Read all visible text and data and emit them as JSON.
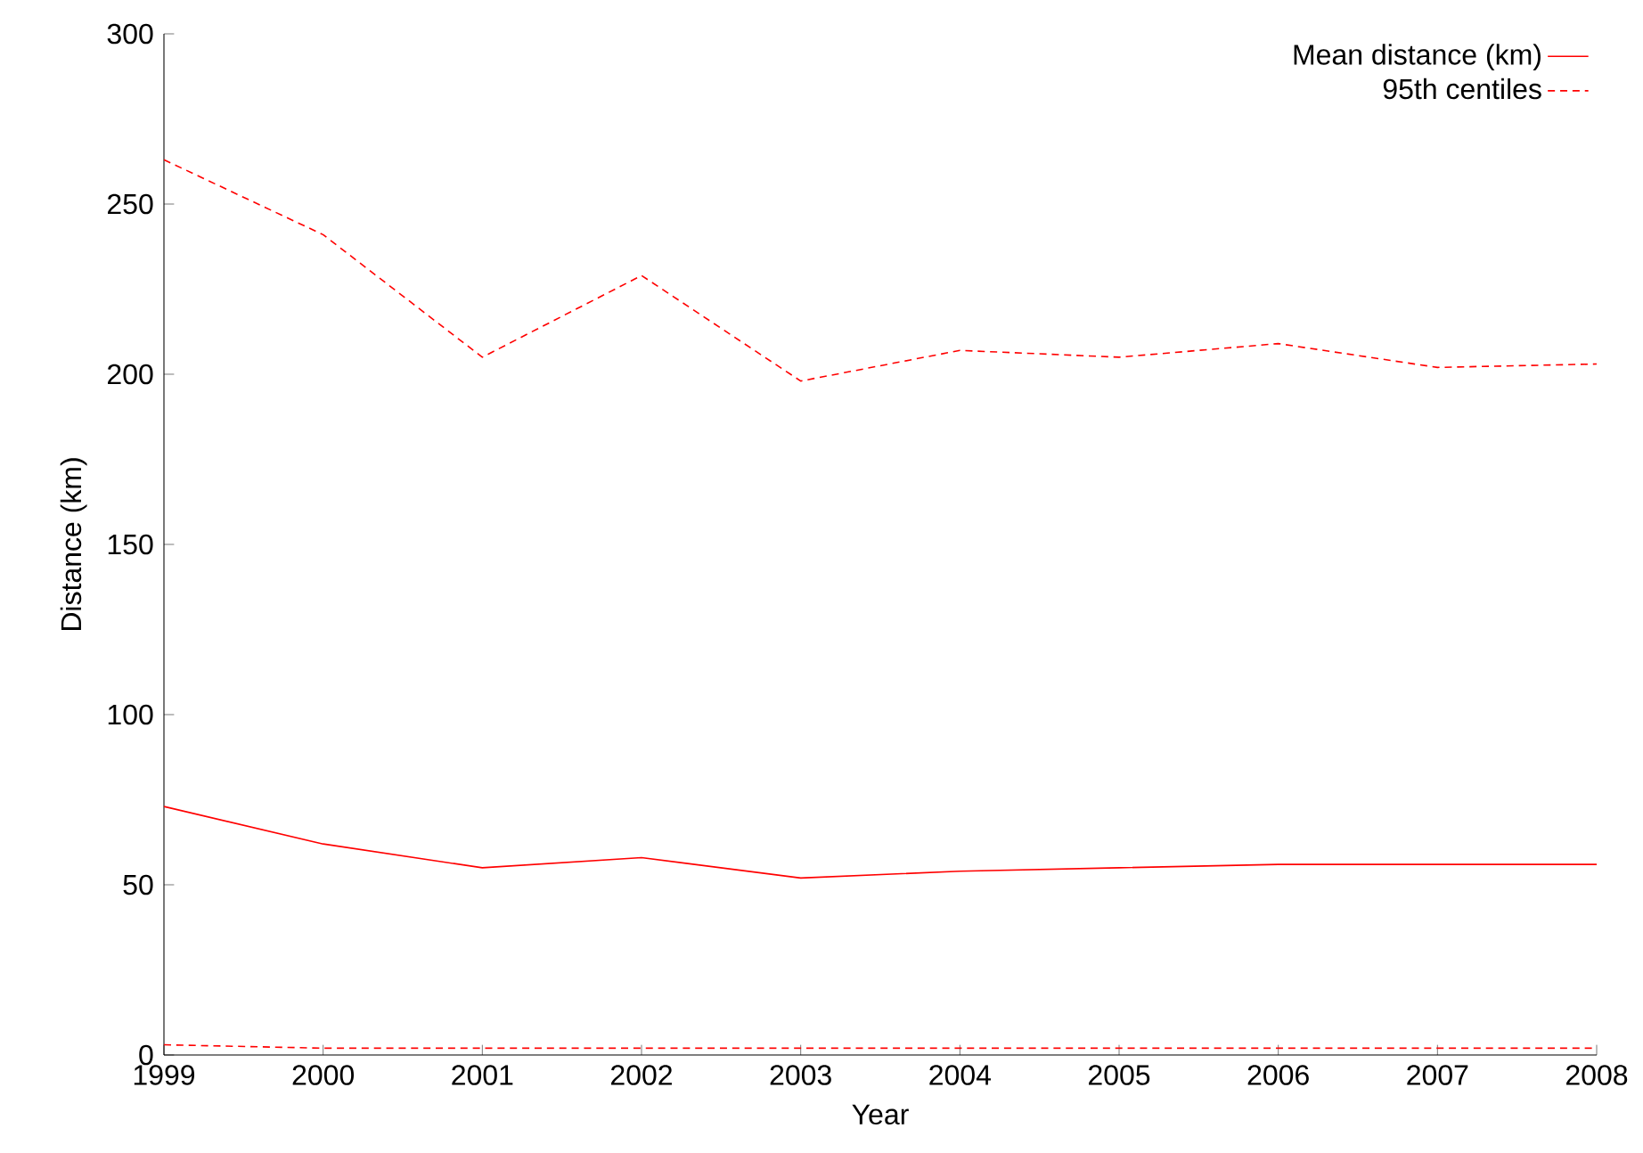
{
  "chart_data": {
    "type": "line",
    "xlabel": "Year",
    "ylabel": "Distance (km)",
    "x": [
      1999,
      2000,
      2001,
      2002,
      2003,
      2004,
      2005,
      2006,
      2007,
      2008
    ],
    "xlim": [
      1999,
      2008
    ],
    "xticks": [
      1999,
      2000,
      2001,
      2002,
      2003,
      2004,
      2005,
      2006,
      2007,
      2008
    ],
    "ylim": [
      0,
      300
    ],
    "yticks": [
      0,
      50,
      100,
      150,
      200,
      250,
      300
    ],
    "grid": false,
    "legend": "top right",
    "marker": "none",
    "series": [
      {
        "name": "Mean distance (km)",
        "color": "#ff0000",
        "line_style": "solid",
        "values": [
          73,
          62,
          55,
          58,
          52,
          54,
          55,
          56,
          56,
          56
        ]
      },
      {
        "name": "95th centiles",
        "color": "#ff0000",
        "line_style": "dashed",
        "values": [
          263,
          241,
          205,
          229,
          198,
          207,
          205,
          209,
          202,
          203
        ]
      },
      {
        "color": "#ff0000",
        "line_style": "dashed",
        "values": [
          3,
          2,
          2,
          2,
          2,
          2,
          2,
          2,
          2,
          2
        ]
      }
    ]
  }
}
